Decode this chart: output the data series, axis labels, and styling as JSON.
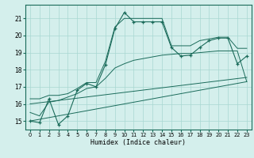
{
  "xlabel": "Humidex (Indice chaleur)",
  "bg_color": "#d4efec",
  "line_color": "#1a6b5a",
  "grid_color": "#a8d8d2",
  "x_ticks": [
    0,
    1,
    2,
    3,
    4,
    5,
    6,
    7,
    8,
    9,
    10,
    11,
    12,
    13,
    14,
    15,
    16,
    17,
    18,
    19,
    20,
    21,
    22,
    23
  ],
  "y_ticks": [
    15,
    16,
    17,
    18,
    19,
    20,
    21
  ],
  "xlim": [
    -0.5,
    23.5
  ],
  "ylim": [
    14.5,
    21.8
  ],
  "main_line": {
    "x": [
      0,
      1,
      2,
      3,
      4,
      5,
      6,
      7,
      8,
      9,
      10,
      11,
      12,
      13,
      14,
      15,
      16,
      17,
      18,
      19,
      20,
      21,
      22,
      23
    ],
    "y": [
      15.0,
      14.9,
      16.3,
      14.8,
      15.3,
      16.8,
      17.2,
      17.0,
      18.3,
      20.4,
      21.35,
      20.8,
      20.8,
      20.8,
      20.8,
      19.3,
      18.8,
      18.85,
      19.3,
      19.7,
      19.85,
      19.85,
      18.35,
      18.8
    ]
  },
  "upper_band": {
    "x": [
      0,
      1,
      2,
      3,
      4,
      5,
      6,
      7,
      8,
      9,
      10,
      11,
      12,
      13,
      14,
      15,
      16,
      17,
      18,
      19,
      20,
      21,
      22,
      23
    ],
    "y": [
      16.3,
      16.3,
      16.5,
      16.5,
      16.6,
      16.9,
      17.25,
      17.25,
      18.5,
      20.5,
      21.0,
      21.0,
      21.0,
      21.0,
      21.0,
      19.4,
      19.4,
      19.4,
      19.7,
      19.8,
      19.9,
      19.9,
      19.25,
      19.25
    ]
  },
  "lower_band": {
    "x": [
      0,
      1,
      2,
      3,
      4,
      5,
      6,
      7,
      8,
      9,
      10,
      11,
      12,
      13,
      14,
      15,
      16,
      17,
      18,
      19,
      20,
      21,
      22,
      23
    ],
    "y": [
      15.5,
      15.3,
      16.1,
      16.2,
      16.4,
      16.6,
      16.9,
      17.0,
      17.5,
      18.1,
      18.35,
      18.55,
      18.65,
      18.75,
      18.85,
      18.9,
      18.95,
      18.95,
      19.0,
      19.05,
      19.1,
      19.1,
      19.1,
      17.3
    ]
  },
  "diag_lower": {
    "x": [
      0,
      23
    ],
    "y": [
      15.0,
      17.3
    ]
  },
  "diag_upper": {
    "x": [
      0,
      23
    ],
    "y": [
      16.0,
      17.55
    ]
  }
}
